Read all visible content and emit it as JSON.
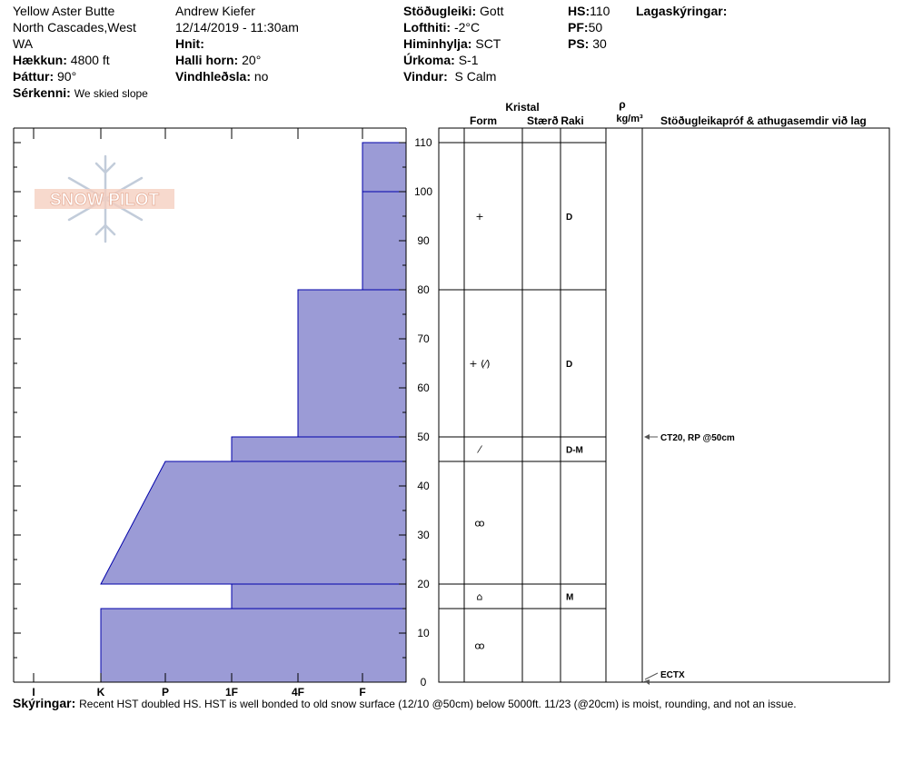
{
  "header": {
    "location": "Yellow Aster Butte",
    "region_line1": "North Cascades,West",
    "region_line2": "WA",
    "elevation_label": "Hækkun:",
    "elevation_value": "4800 ft",
    "aspect_label": "Þáttur:",
    "aspect_value": "90°",
    "features_label": "Sérkenni:",
    "features_value": "We skied slope",
    "observer": "Andrew Kiefer",
    "datetime": "12/14/2019 - 11:30am",
    "coords_label": "Hnit:",
    "slope_label": "Halli horn:",
    "slope_value": "20°",
    "wind_loading_label": "Vindhleðsla:",
    "wind_loading_value": "no",
    "stability_label": "Stöðugleiki:",
    "stability_value": "Gott",
    "air_temp_label": "Lofthiti:",
    "air_temp_value": "-2°C",
    "sky_label": "Himinhylja:",
    "sky_value": "SCT",
    "precip_label": "Úrkoma:",
    "precip_value": "S-1",
    "wind_label": "Vindur:",
    "wind_value": "S Calm",
    "hs_label": "HS:",
    "hs_value": "110",
    "pf_label": "PF:",
    "pf_value": "50",
    "ps_label": "PS:",
    "ps_value": "30",
    "legend_label": "Lagaskýringar:"
  },
  "columns": {
    "kristal": "Kristal",
    "form": "Form",
    "size": "Stærð",
    "moisture": "Raki",
    "rho": "ρ",
    "density_unit": "kg/m³",
    "tests": "Stöðugleikapróf & athugasemdir við lag"
  },
  "logo_text": "SNOW PILOT",
  "notes_label": "Skýringar:",
  "notes_value": "Recent HST doubled HS. HST is well bonded to old snow surface (12/10 @50cm) below 5000ft. 11/23 (@20cm) is moist, rounding, and not an issue.",
  "colors": {
    "layer_fill": "#9b9bd6",
    "layer_stroke": "#0000aa",
    "axis": "#000000"
  },
  "chart_data": {
    "type": "area",
    "y_axis": {
      "label": "",
      "unit": "cm",
      "range": [
        0,
        110
      ],
      "ticks": [
        0,
        10,
        20,
        30,
        40,
        50,
        60,
        70,
        80,
        90,
        100,
        110
      ]
    },
    "hardness_scale": [
      "I",
      "K",
      "P",
      "1F",
      "4F",
      "F"
    ],
    "hardness_index": {
      "I": 0,
      "K": 1,
      "P": 2,
      "1F": 3,
      "4F": 4,
      "F": 5
    },
    "hardness_profile": [
      {
        "bottom": 100,
        "top": 110,
        "hardness": "F"
      },
      {
        "bottom": 80,
        "top": 100,
        "hardness": "F"
      },
      {
        "bottom": 50,
        "top": 80,
        "hardness": "4F"
      },
      {
        "bottom": 45,
        "top": 50,
        "hardness": "1F"
      },
      {
        "bottom": 20,
        "top": 45,
        "hardness_top": "P",
        "hardness_bottom": "K"
      },
      {
        "bottom": 15,
        "top": 20,
        "hardness": "1F"
      },
      {
        "bottom": 0,
        "top": 15,
        "hardness": "K"
      }
    ],
    "layers": [
      {
        "bottom": 80,
        "top": 110,
        "form": "+",
        "moisture": "D"
      },
      {
        "bottom": 50,
        "top": 80,
        "form": "+ (⁄)",
        "moisture": "D"
      },
      {
        "bottom": 45,
        "top": 50,
        "form": "⁄",
        "moisture": "D-M"
      },
      {
        "bottom": 20,
        "top": 45,
        "form": "ꝏ",
        "moisture": ""
      },
      {
        "bottom": 15,
        "top": 20,
        "form": "⌂",
        "moisture": "M"
      },
      {
        "bottom": 0,
        "top": 15,
        "form": "ꝏ",
        "moisture": ""
      }
    ],
    "tests": [
      {
        "height": 50,
        "text": "CT20, RP @50cm"
      },
      {
        "height": 0,
        "text": "ECTX"
      }
    ]
  }
}
